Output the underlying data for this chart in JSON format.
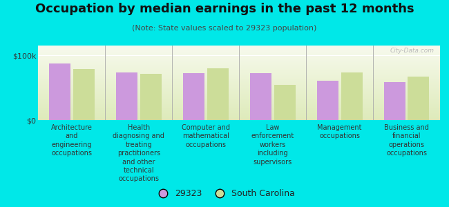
{
  "title": "Occupation by median earnings in the past 12 months",
  "subtitle": "(Note: State values scaled to 29323 population)",
  "categories": [
    "Architecture\nand\nengineering\noccupations",
    "Health\ndiagnosing and\ntreating\npractitioners\nand other\ntechnical\noccupations",
    "Computer and\nmathematical\noccupations",
    "Law\nenforcement\nworkers\nincluding\nsupervisors",
    "Management\noccupations",
    "Business and\nfinancial\noperations\noccupations"
  ],
  "values_29323": [
    87000,
    74000,
    72000,
    72000,
    61000,
    59000
  ],
  "values_sc": [
    79000,
    71000,
    80000,
    54000,
    74000,
    67000
  ],
  "color_29323": "#cc99dd",
  "color_sc": "#ccdd99",
  "ylim": [
    0,
    115000
  ],
  "yticks": [
    0,
    100000
  ],
  "ytick_labels": [
    "$0",
    "$100k"
  ],
  "legend_29323": "29323",
  "legend_sc": "South Carolina",
  "plot_bg_top": "#f5f8e8",
  "plot_bg_bottom": "#dde8bb",
  "outer_background": "#00e8e8",
  "watermark": "City-Data.com",
  "title_fontsize": 13,
  "subtitle_fontsize": 8,
  "tick_fontsize": 8,
  "label_fontsize": 7,
  "legend_fontsize": 9
}
